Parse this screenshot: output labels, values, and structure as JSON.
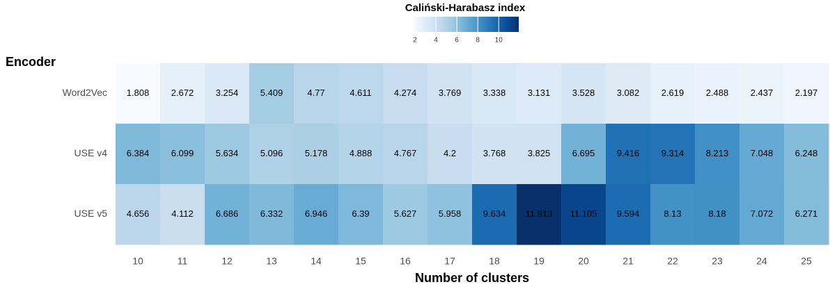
{
  "chart_data": {
    "type": "heatmap",
    "title": "Caliński-Harabasz index",
    "x_label": "Number of clusters",
    "y_label": "Encoder",
    "categories": [
      10,
      11,
      12,
      13,
      14,
      15,
      16,
      17,
      18,
      19,
      20,
      21,
      22,
      23,
      24,
      25
    ],
    "rows": [
      "Word2Vec",
      "USE v4",
      "USE v5"
    ],
    "values": [
      [
        1.808,
        2.672,
        3.254,
        5.409,
        4.77,
        4.611,
        4.274,
        3.769,
        3.338,
        3.131,
        3.528,
        3.082,
        2.619,
        2.488,
        2.437,
        2.197
      ],
      [
        6.384,
        6.099,
        5.634,
        5.096,
        5.178,
        4.888,
        4.767,
        4.2,
        3.768,
        3.825,
        6.695,
        9.416,
        9.314,
        8.213,
        7.048,
        6.248
      ],
      [
        4.656,
        4.112,
        6.686,
        6.332,
        6.946,
        6.39,
        5.627,
        5.958,
        9.634,
        11.913,
        11.105,
        9.594,
        8.13,
        8.18,
        7.072,
        6.271
      ]
    ],
    "colorscale": [
      "#f7fbff",
      "#deebf7",
      "#c6dbef",
      "#9ecae1",
      "#6baed6",
      "#4292c6",
      "#2171b5",
      "#08519c",
      "#08306b"
    ],
    "clim": [
      1.808,
      11.913
    ],
    "cticks": [
      2,
      4,
      6,
      8,
      10
    ]
  }
}
